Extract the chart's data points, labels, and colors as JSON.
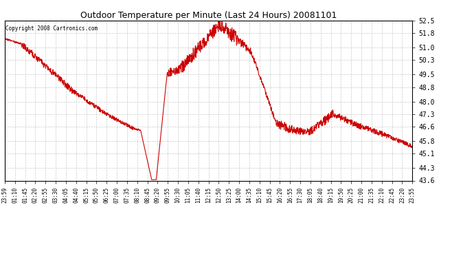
{
  "title": "Outdoor Temperature per Minute (Last 24 Hours) 20081101",
  "copyright_text": "Copyright 2008 Cartronics.com",
  "line_color": "#cc0000",
  "background_color": "#ffffff",
  "plot_background": "#ffffff",
  "grid_color": "#bbbbbb",
  "ylim": [
    43.6,
    52.5
  ],
  "yticks": [
    43.6,
    44.3,
    45.1,
    45.8,
    46.6,
    47.3,
    48.0,
    48.8,
    49.5,
    50.3,
    51.0,
    51.8,
    52.5
  ],
  "x_labels": [
    "23:59",
    "01:10",
    "01:45",
    "02:20",
    "02:55",
    "03:30",
    "04:05",
    "04:40",
    "05:15",
    "05:50",
    "06:25",
    "07:00",
    "07:35",
    "08:10",
    "08:45",
    "09:20",
    "09:55",
    "10:30",
    "11:05",
    "11:40",
    "12:15",
    "12:50",
    "13:25",
    "14:00",
    "14:35",
    "15:10",
    "15:45",
    "16:20",
    "16:55",
    "17:30",
    "18:05",
    "18:40",
    "19:15",
    "19:50",
    "20:25",
    "21:00",
    "21:35",
    "22:10",
    "22:45",
    "23:20",
    "23:55"
  ]
}
